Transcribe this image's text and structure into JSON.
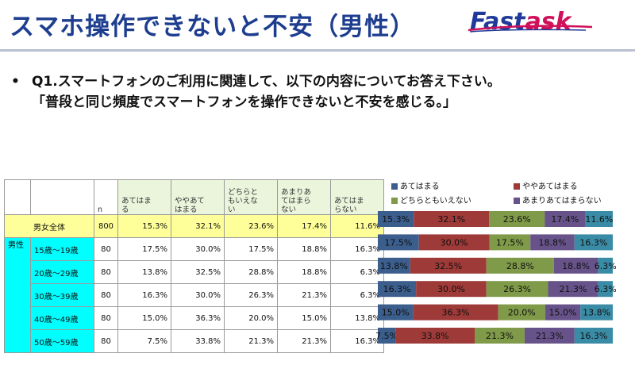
{
  "header": {
    "title": "スマホ操作できないと不安（男性）",
    "logo_part1": "Fast",
    "logo_part2": "ask"
  },
  "question": {
    "bullet": "•",
    "line1": "Q1.スマートフォンのご利用に関連して、以下の内容についてお答え下さい。",
    "line2": "「普段と同じ頻度でスマートフォンを操作できないと不安を感じる。」"
  },
  "table": {
    "n_header": "n",
    "columns": [
      "あてはまる",
      "ややあてはまる",
      "どちらともいえない",
      "あまりあてはまらない",
      "あてはまらない"
    ],
    "columns_wrapped": [
      [
        "あてはま",
        "る"
      ],
      [
        "ややあて",
        "はまる"
      ],
      [
        "どちらと",
        "もいえな",
        "い"
      ],
      [
        "あまりあ",
        "てはまら",
        "ない"
      ],
      [
        "あてはま",
        "らない"
      ]
    ],
    "segment_label": "男性",
    "rows": [
      {
        "label": "男女全体",
        "n": "800",
        "values": [
          "15.3%",
          "32.1%",
          "23.6%",
          "17.4%",
          "11.6%"
        ]
      },
      {
        "label": "15歳～19歳",
        "n": "80",
        "values": [
          "17.5%",
          "30.0%",
          "17.5%",
          "18.8%",
          "16.3%"
        ]
      },
      {
        "label": "20歳～29歳",
        "n": "80",
        "values": [
          "13.8%",
          "32.5%",
          "28.8%",
          "18.8%",
          "6.3%"
        ]
      },
      {
        "label": "30歳～39歳",
        "n": "80",
        "values": [
          "16.3%",
          "30.0%",
          "26.3%",
          "21.3%",
          "6.3%"
        ]
      },
      {
        "label": "40歳～49歳",
        "n": "80",
        "values": [
          "15.0%",
          "36.3%",
          "20.0%",
          "15.0%",
          "13.8%"
        ]
      },
      {
        "label": "50歳～59歳",
        "n": "80",
        "values": [
          "7.5%",
          "33.8%",
          "21.3%",
          "21.3%",
          "16.3%"
        ]
      }
    ]
  },
  "chart_data": {
    "type": "bar",
    "orientation": "horizontal",
    "stacked": true,
    "categories": [
      "男女全体",
      "15歳～19歳",
      "20歳～29歳",
      "30歳～39歳",
      "40歳～49歳",
      "50歳～59歳"
    ],
    "series": [
      {
        "name": "あてはまる",
        "color": "#3b5e8c",
        "values": [
          15.3,
          17.5,
          13.8,
          16.3,
          15.0,
          7.5
        ]
      },
      {
        "name": "ややあてはまる",
        "color": "#9e3a38",
        "values": [
          32.1,
          30.0,
          32.5,
          30.0,
          36.3,
          33.8
        ]
      },
      {
        "name": "どちらともいえない",
        "color": "#7f9a48",
        "values": [
          23.6,
          17.5,
          28.8,
          26.3,
          20.0,
          21.3
        ]
      },
      {
        "name": "あまりあてはまらない",
        "color": "#67538a",
        "values": [
          17.4,
          18.8,
          18.8,
          21.3,
          15.0,
          21.3
        ]
      },
      {
        "name": "あてはまらない",
        "color": "#3a8ca6",
        "values": [
          11.6,
          16.3,
          6.3,
          6.3,
          13.8,
          16.3
        ]
      }
    ],
    "legend_position": "top",
    "legend_order": [
      0,
      1,
      2,
      3
    ],
    "data_label_suffix": "%"
  }
}
